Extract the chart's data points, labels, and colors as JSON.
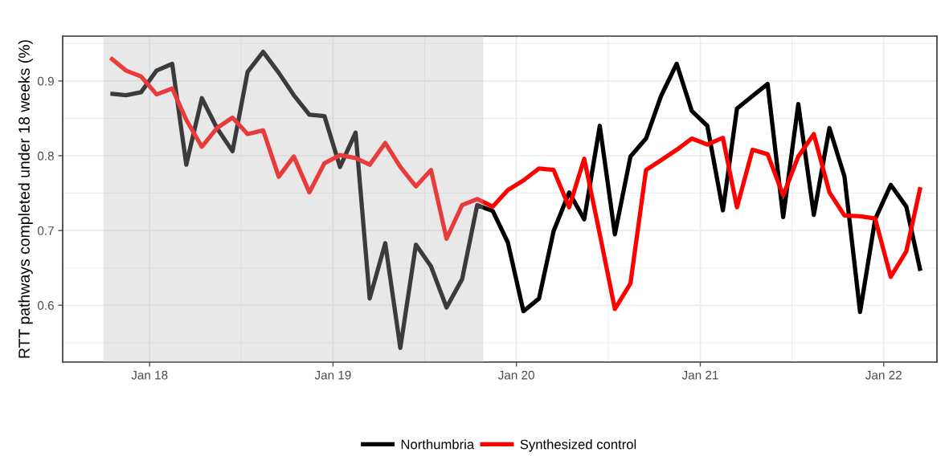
{
  "chart_data": {
    "type": "line",
    "ylabel": "RTT pathways completed under 18 weeks (%)",
    "x": [
      "2017-10-15",
      "2017-11-15",
      "2017-12-15",
      "2018-01-15",
      "2018-02-15",
      "2018-03-15",
      "2018-04-15",
      "2018-05-15",
      "2018-06-15",
      "2018-07-15",
      "2018-08-15",
      "2018-09-15",
      "2018-10-15",
      "2018-11-15",
      "2018-12-15",
      "2019-01-15",
      "2019-02-15",
      "2019-03-15",
      "2019-04-15",
      "2019-05-15",
      "2019-06-15",
      "2019-07-15",
      "2019-08-15",
      "2019-09-15",
      "2019-10-15",
      "2019-11-15",
      "2019-12-15",
      "2020-01-15",
      "2020-02-15",
      "2020-03-15",
      "2020-04-15",
      "2020-05-15",
      "2020-06-15",
      "2020-07-15",
      "2020-08-15",
      "2020-09-15",
      "2020-10-15",
      "2020-11-15",
      "2020-12-15",
      "2021-01-15",
      "2021-02-15",
      "2021-03-15",
      "2021-04-15",
      "2021-05-15",
      "2021-06-15",
      "2021-07-15",
      "2021-08-15",
      "2021-09-15",
      "2021-10-15",
      "2021-11-15",
      "2021-12-15",
      "2022-01-15",
      "2022-02-15",
      "2022-03-15"
    ],
    "series": [
      {
        "name": "Northumbria",
        "color": "#000000",
        "values": [
          0.883,
          0.881,
          0.885,
          0.914,
          0.923,
          0.788,
          0.877,
          0.837,
          0.806,
          0.912,
          0.939,
          0.911,
          0.881,
          0.855,
          0.853,
          0.785,
          0.831,
          0.609,
          0.683,
          0.543,
          0.681,
          0.652,
          0.597,
          0.635,
          0.734,
          0.726,
          0.684,
          0.592,
          0.609,
          0.699,
          0.751,
          0.715,
          0.84,
          0.695,
          0.799,
          0.823,
          0.88,
          0.923,
          0.86,
          0.84,
          0.727,
          0.863,
          0.88,
          0.896,
          0.718,
          0.869,
          0.721,
          0.837,
          0.772,
          0.591,
          0.715,
          0.761,
          0.732,
          0.646
        ]
      },
      {
        "name": "Synthesized control",
        "color": "#ff0000",
        "values": [
          0.931,
          0.914,
          0.906,
          0.882,
          0.89,
          0.848,
          0.812,
          0.837,
          0.851,
          0.829,
          0.834,
          0.772,
          0.799,
          0.751,
          0.79,
          0.801,
          0.797,
          0.788,
          0.817,
          0.785,
          0.759,
          0.781,
          0.689,
          0.734,
          0.742,
          0.732,
          0.754,
          0.767,
          0.783,
          0.781,
          0.731,
          0.796,
          0.695,
          0.595,
          0.629,
          0.781,
          0.794,
          0.808,
          0.823,
          0.815,
          0.824,
          0.731,
          0.808,
          0.802,
          0.747,
          0.799,
          0.829,
          0.751,
          0.72,
          0.719,
          0.716,
          0.638,
          0.672,
          0.758
        ]
      }
    ],
    "xlim": [
      "2017-07-12",
      "2022-04-17"
    ],
    "xticks": [
      {
        "value": "2018-01-01",
        "label": "Jan 18"
      },
      {
        "value": "2019-01-01",
        "label": "Jan 19"
      },
      {
        "value": "2020-01-01",
        "label": "Jan 20"
      },
      {
        "value": "2021-01-01",
        "label": "Jan 21"
      },
      {
        "value": "2022-01-01",
        "label": "Jan 22"
      }
    ],
    "ylim": [
      0.524,
      0.96
    ],
    "yticks": [
      0.6,
      0.7,
      0.8,
      0.9
    ],
    "bands": [
      {
        "axis": "x",
        "from": "2017-10-01",
        "to": "2019-10-27",
        "color": "#b6b6b6"
      }
    ],
    "grid": true,
    "legend": "bottom",
    "line_style": "solid",
    "marker": "none"
  }
}
